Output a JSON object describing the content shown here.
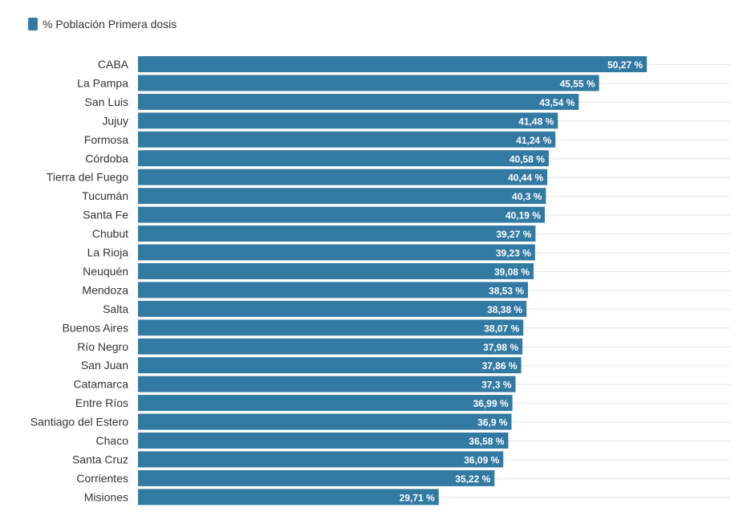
{
  "chart_data": {
    "type": "bar",
    "orientation": "horizontal",
    "series": [
      {
        "name": "% Población Primera dosis",
        "color": "#337aa3",
        "values": [
          50.27,
          45.55,
          43.54,
          41.48,
          41.24,
          40.58,
          40.44,
          40.3,
          40.19,
          39.27,
          39.23,
          39.08,
          38.53,
          38.38,
          38.07,
          37.98,
          37.86,
          37.3,
          36.99,
          36.9,
          36.58,
          36.09,
          35.22,
          29.71
        ],
        "value_labels": [
          "50,27 %",
          "45,55 %",
          "43,54 %",
          "41,48 %",
          "41,24 %",
          "40,58 %",
          "40,44 %",
          "40,3 %",
          "40,19 %",
          "39,27 %",
          "39,23 %",
          "39,08 %",
          "38,53 %",
          "38,38 %",
          "38,07 %",
          "37,98 %",
          "37,86 %",
          "37,3 %",
          "36,99 %",
          "36,9 %",
          "36,58 %",
          "36,09 %",
          "35,22 %",
          "29,71 %"
        ]
      }
    ],
    "categories": [
      "CABA",
      "La Pampa",
      "San Luis",
      "Jujuy",
      "Formosa",
      "Córdoba",
      "Tierra del Fuego",
      "Tucumán",
      "Santa Fe",
      "Chubut",
      "La Rioja",
      "Neuquén",
      "Mendoza",
      "Salta",
      "Buenos Aires",
      "Río Negro",
      "San Juan",
      "Catamarca",
      "Entre Ríos",
      "Santiago del Estero",
      "Chaco",
      "Santa Cruz",
      "Corrientes",
      "Misiones"
    ],
    "xlim": [
      0,
      58.5
    ],
    "legend_position": "top-left",
    "grid": true
  }
}
